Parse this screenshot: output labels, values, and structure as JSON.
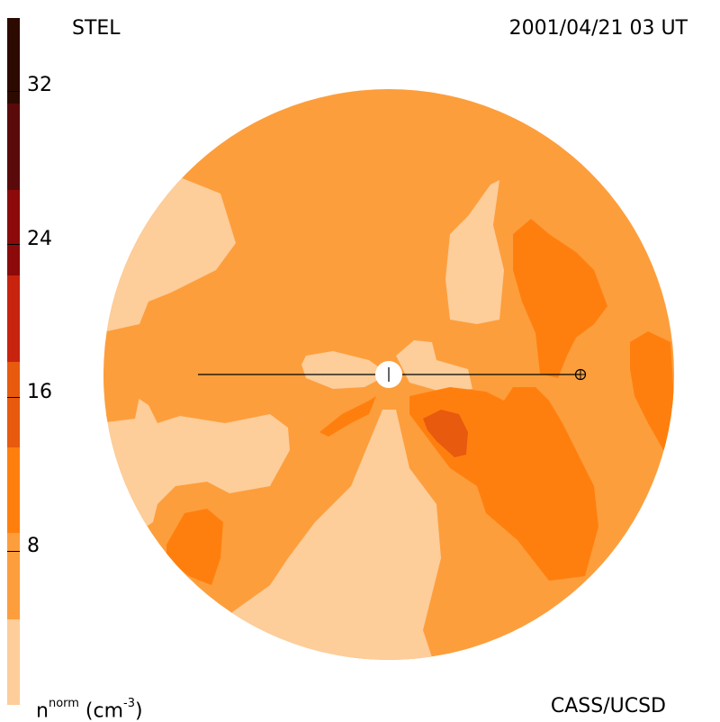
{
  "header": {
    "left_label": "STEL",
    "timestamp": "2001/04/21 03 UT"
  },
  "footer": {
    "units_base": "n",
    "units_sup": "norm",
    "units_rest": " (cm",
    "units_exp": "-3",
    "units_close": ")",
    "credit": "CASS/UCSD"
  },
  "colorbar": {
    "tick_labels": [
      "32",
      "24",
      "16",
      "8"
    ],
    "levels": [
      {
        "color": "#2d0a00"
      },
      {
        "color": "#5a0a0a"
      },
      {
        "color": "#8c0a0a"
      },
      {
        "color": "#c8230e"
      },
      {
        "color": "#e85a0e"
      },
      {
        "color": "#ff7f0e"
      },
      {
        "color": "#fd9e3c"
      },
      {
        "color": "#fdcd9a"
      }
    ]
  },
  "colors": {
    "light": "#fdcd9a",
    "mid": "#fd9e3c",
    "orange": "#ff7f0e",
    "dark": "#e85a0e",
    "darker": "#c8230e"
  }
}
